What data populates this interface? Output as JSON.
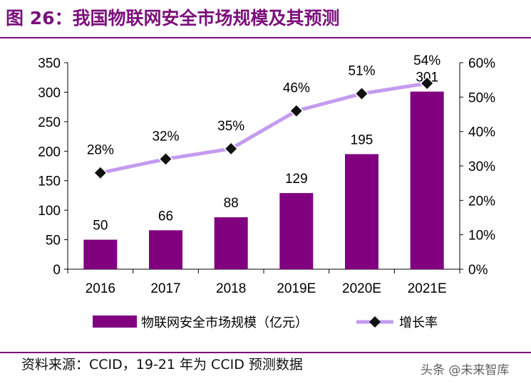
{
  "title": "图 26：我国物联网安全市场规模及其预测",
  "source": "资料来源：CCID，19-21 年为 CCID 预测数据",
  "watermark": "头条 @未来智库",
  "colors": {
    "bar": "#800080",
    "line": "#c49bf0",
    "marker": "#111111",
    "accent": "#7b0f7b"
  },
  "chart_data": {
    "type": "bar",
    "categories": [
      "2016",
      "2017",
      "2018",
      "2019E",
      "2020E",
      "2021E"
    ],
    "series": [
      {
        "name": "物联网安全市场规模（亿元）",
        "type": "bar",
        "axis": "left",
        "values": [
          50,
          66,
          88,
          129,
          195,
          301
        ],
        "labels": [
          "50",
          "66",
          "88",
          "129",
          "195",
          "301"
        ]
      },
      {
        "name": "增长率",
        "type": "line",
        "axis": "right",
        "values": [
          28,
          32,
          35,
          46,
          51,
          54
        ],
        "labels": [
          "28%",
          "32%",
          "35%",
          "46%",
          "51%",
          "54%"
        ]
      }
    ],
    "ylim": [
      0,
      350
    ],
    "yticks": [
      "0",
      "50",
      "100",
      "150",
      "200",
      "250",
      "300",
      "350"
    ],
    "y2lim": [
      0,
      60
    ],
    "y2ticks": [
      "0%",
      "10%",
      "20%",
      "30%",
      "40%",
      "50%",
      "60%"
    ],
    "legend_position": "bottom",
    "grid": false
  }
}
